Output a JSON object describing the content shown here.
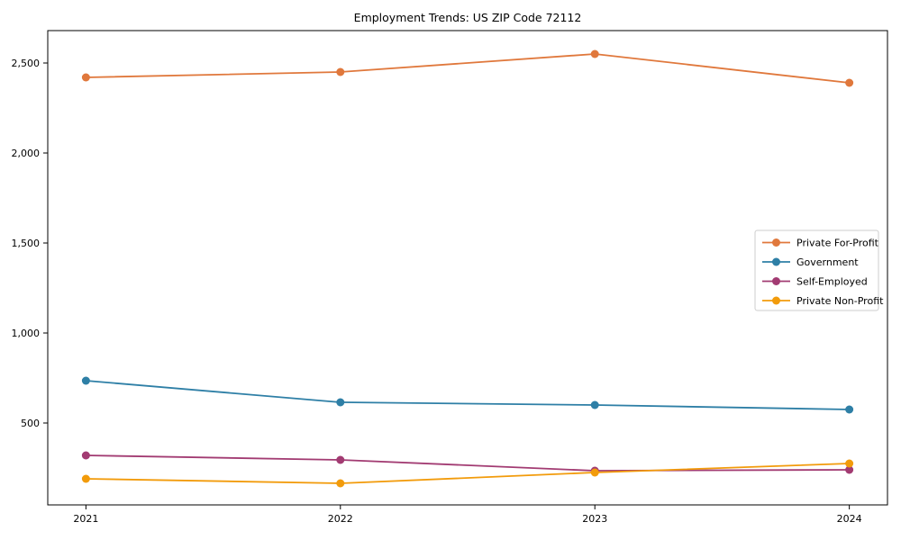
{
  "chart_data": {
    "type": "line",
    "title": "Employment Trends: US ZIP Code 72112",
    "x": [
      2021,
      2022,
      2023,
      2024
    ],
    "x_tick_labels": [
      "2021",
      "2022",
      "2023",
      "2024"
    ],
    "series": [
      {
        "name": "Private For-Profit",
        "color": "#E0783C",
        "values": [
          2420,
          2450,
          2550,
          2390
        ]
      },
      {
        "name": "Government",
        "color": "#2E7FA6",
        "values": [
          735,
          615,
          600,
          575
        ]
      },
      {
        "name": "Self-Employed",
        "color": "#A23B72",
        "values": [
          320,
          295,
          235,
          240
        ]
      },
      {
        "name": "Private Non-Profit",
        "color": "#F29B0B",
        "values": [
          190,
          165,
          225,
          275
        ]
      }
    ],
    "xlabel": "",
    "ylabel": "",
    "xlim": [
      2020.85,
      2024.15
    ],
    "ylim": [
      45,
      2680
    ],
    "yticks": [
      500,
      1000,
      1500,
      2000,
      2500
    ],
    "ytick_labels": [
      "500",
      "1,000",
      "1,500",
      "2,000",
      "2,500"
    ],
    "grid": false,
    "legend_position": "center-right",
    "marker": "circle",
    "frame_color": "#000000",
    "legend_border_color": "#cccccc",
    "legend_background": "#ffffff"
  }
}
